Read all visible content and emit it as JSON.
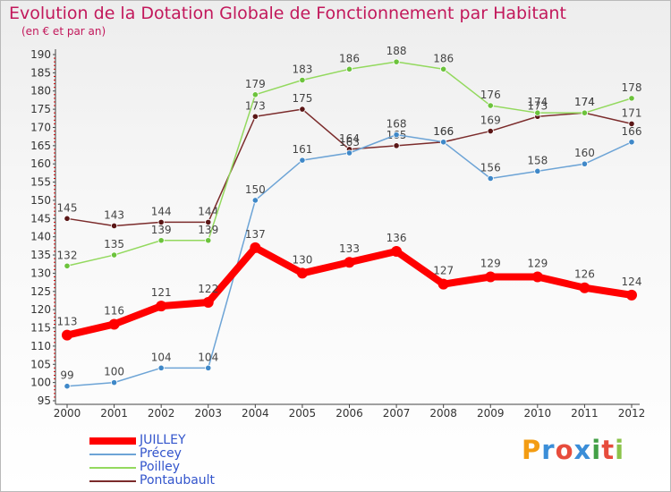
{
  "header": {
    "title": "Evolution de la Dotation Globale de Fonctionnement par Habitant",
    "subtitle": "(en € et par an)"
  },
  "logo": {
    "text": "Proxiti",
    "colors": [
      "#f39c12",
      "#3b8ed8",
      "#e74c3c",
      "#3b8ed8",
      "#43a047",
      "#e74c3c",
      "#8bc34a"
    ]
  },
  "chart_data": {
    "type": "line",
    "x": [
      "2000",
      "2001",
      "2002",
      "2003",
      "2004",
      "2005",
      "2006",
      "2007",
      "2008",
      "2009",
      "2010",
      "2011",
      "2012"
    ],
    "ylim": [
      95,
      190
    ],
    "yticks": [
      95,
      100,
      105,
      110,
      115,
      120,
      125,
      130,
      135,
      140,
      145,
      150,
      155,
      160,
      165,
      170,
      175,
      180,
      185,
      190
    ],
    "grid": false,
    "legend_position": "bottom-left",
    "series": [
      {
        "name": "JUILLEY",
        "color": "#ff0000",
        "values": [
          113,
          116,
          121,
          122,
          137,
          130,
          133,
          136,
          127,
          129,
          129,
          126,
          124
        ]
      },
      {
        "name": "Précey",
        "color": "#6da4d6",
        "values": [
          99,
          100,
          104,
          104,
          150,
          161,
          163,
          168,
          166,
          156,
          158,
          160,
          166
        ]
      },
      {
        "name": "Poilley",
        "color": "#93d95e",
        "values": [
          132,
          135,
          139,
          139,
          179,
          183,
          186,
          188,
          186,
          176,
          174,
          174,
          178
        ]
      },
      {
        "name": "Pontaubault",
        "color": "#7b2b2b",
        "values": [
          145,
          143,
          144,
          144,
          173,
          175,
          164,
          165,
          166,
          169,
          173,
          174,
          171
        ]
      }
    ]
  }
}
